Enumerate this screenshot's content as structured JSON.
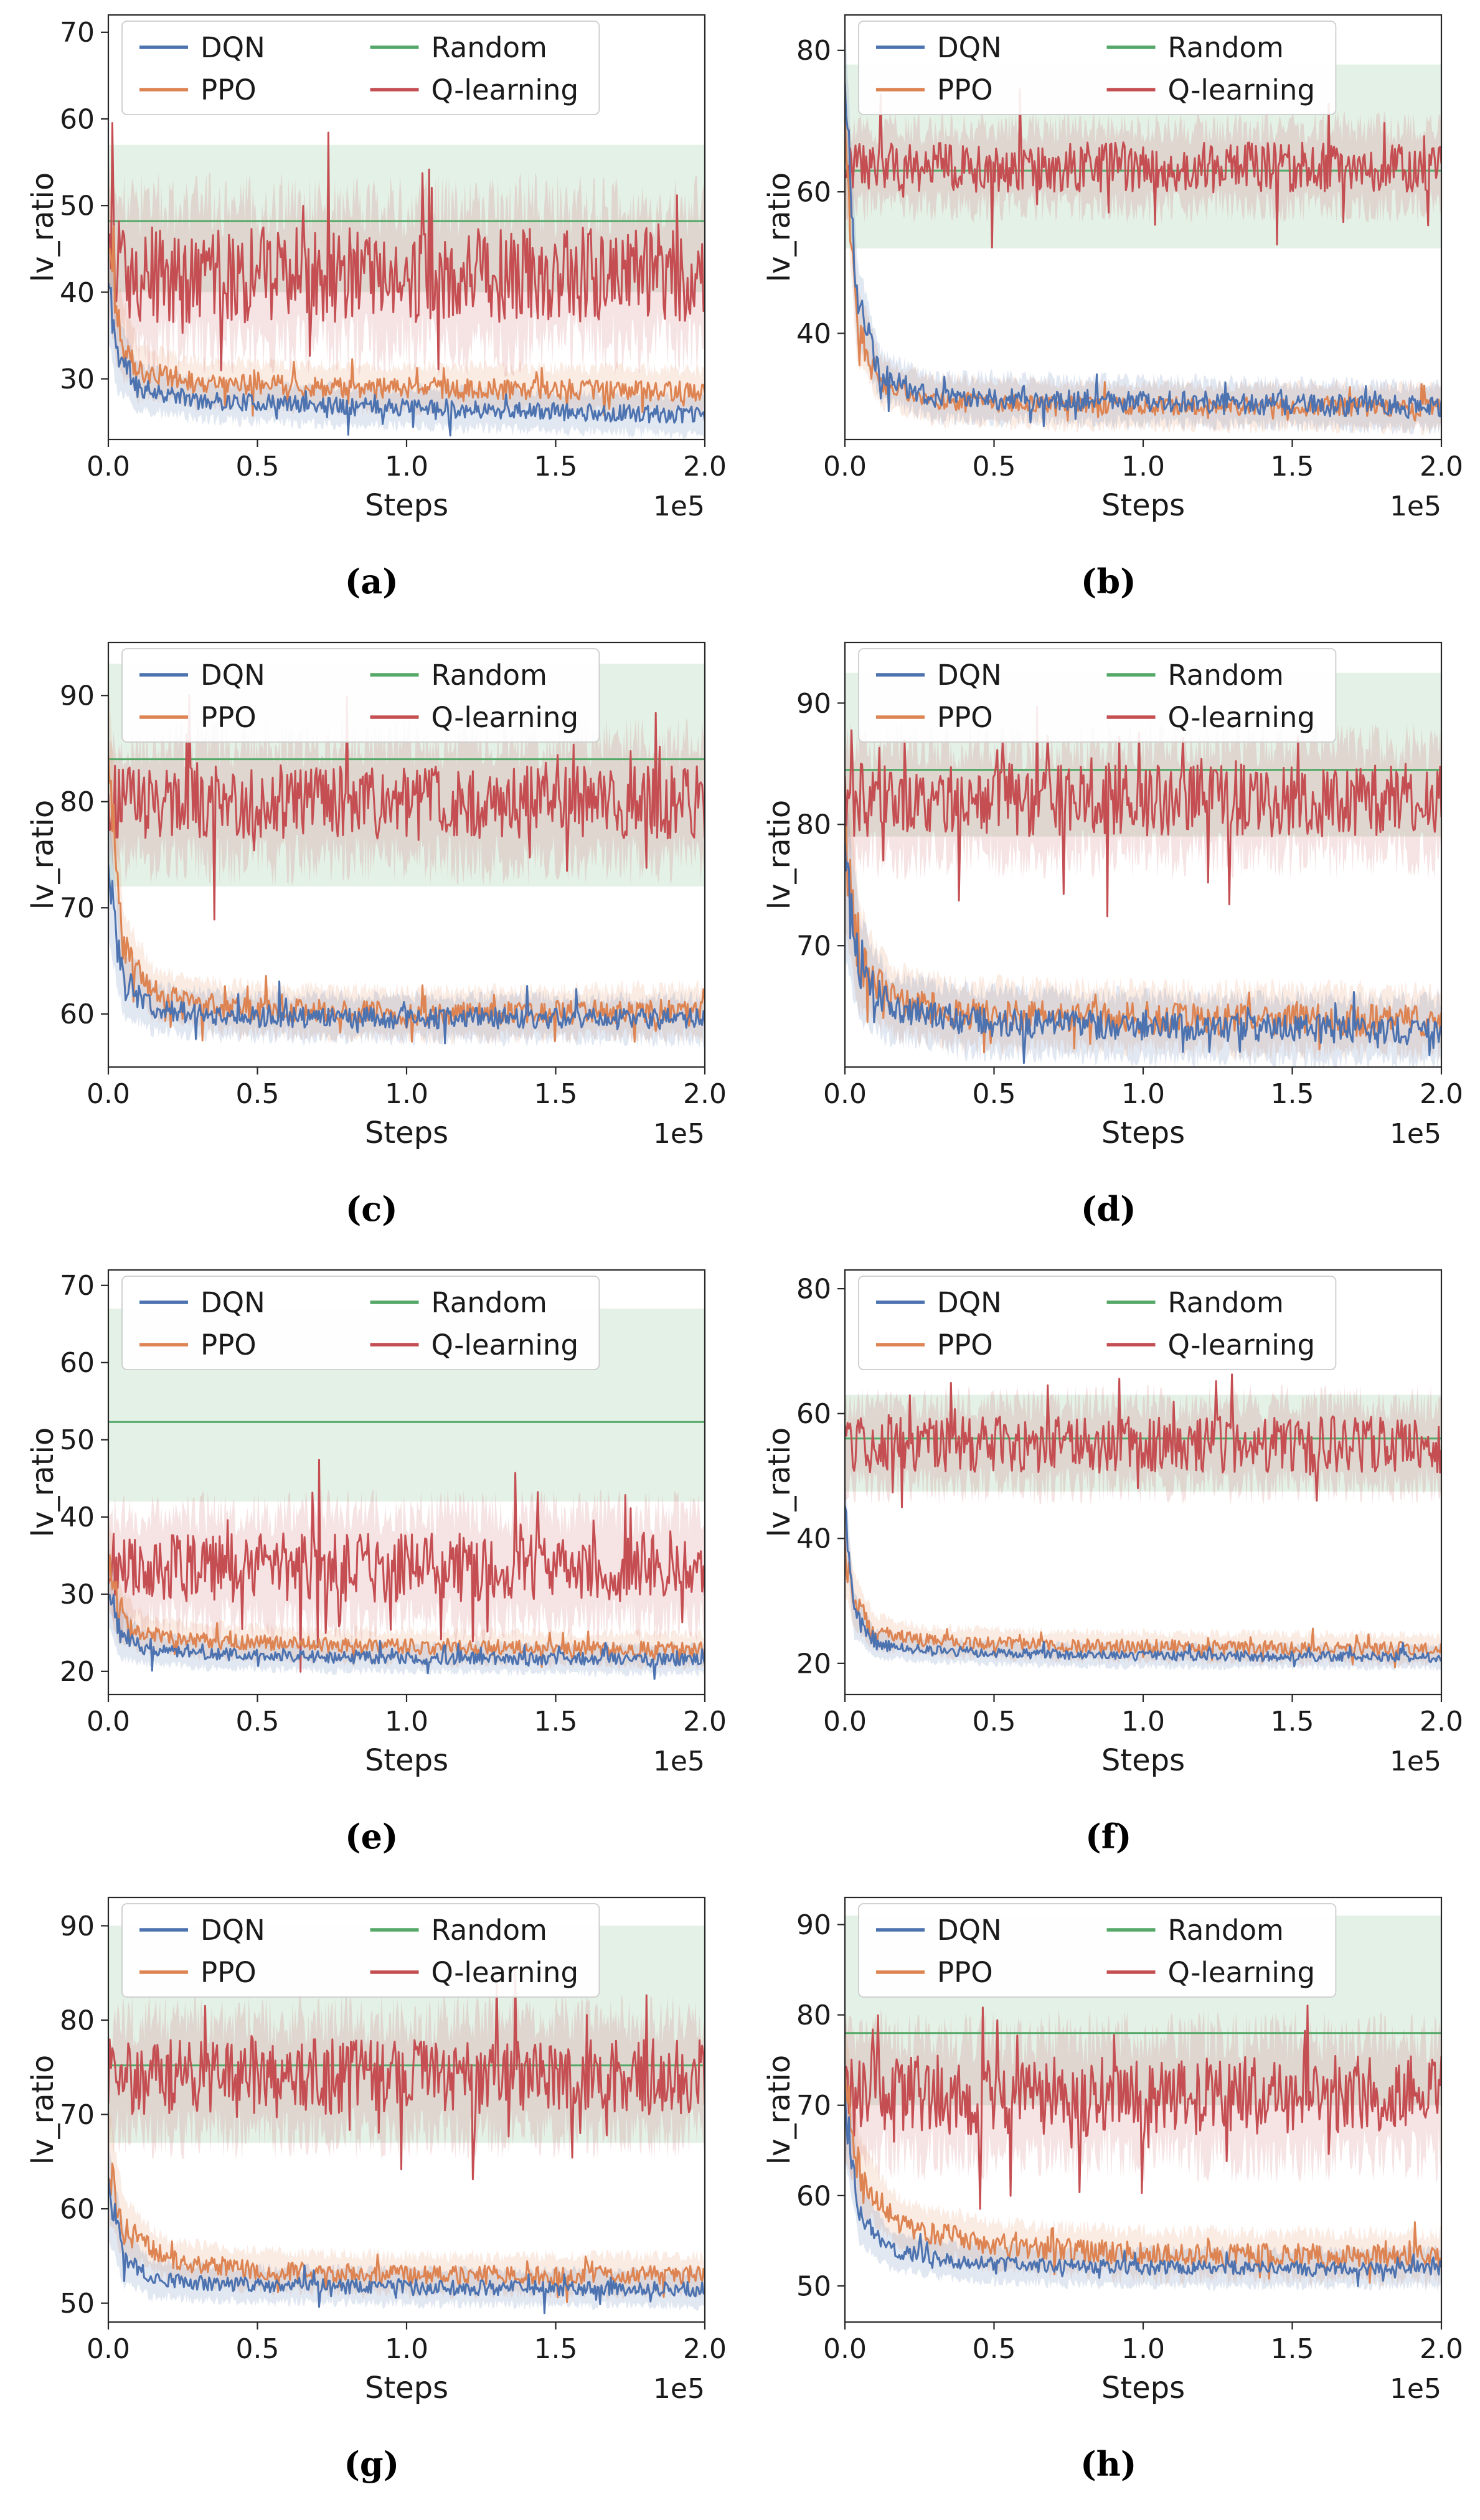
{
  "page": {
    "background": "#ffffff"
  },
  "palette": {
    "DQN": "#4C72B0",
    "PPO": "#DD8452",
    "Random": "#55A868",
    "Q-learning": "#C44E52"
  },
  "chart_data": [
    {
      "type": "line",
      "caption": "(a)",
      "xlabel": "Steps",
      "ylabel": "lv_ratio",
      "x_offset_label": "1e5",
      "xlim": [
        0,
        2
      ],
      "x_ticks": [
        0,
        0.5,
        1,
        1.5,
        2
      ],
      "ylim": [
        23,
        72
      ],
      "y_ticks": [
        30,
        40,
        50,
        60,
        70
      ],
      "legend": [
        "DQN",
        "PPO",
        "Random",
        "Q-learning"
      ],
      "legend_position": "upper center",
      "grid": false,
      "draw_order": [
        2,
        3,
        1,
        0
      ],
      "series": [
        {
          "name": "DQN",
          "color": "#4C72B0",
          "trend_x": [
            0,
            0.03,
            0.1,
            0.3,
            0.7,
            1.4,
            2
          ],
          "trend_y": [
            41,
            33,
            29,
            27.5,
            27,
            26.3,
            25.8
          ],
          "noise": 1.0,
          "band": 2.2,
          "early_noise": 2,
          "seed": 11
        },
        {
          "name": "PPO",
          "color": "#DD8452",
          "trend_x": [
            0,
            0.03,
            0.1,
            0.3,
            0.8,
            1.5,
            2
          ],
          "trend_y": [
            46,
            36,
            31,
            29.5,
            29,
            28.8,
            28.5
          ],
          "noise": 1.2,
          "band": 2.5,
          "early_noise": 2,
          "seed": 12
        },
        {
          "name": "Random",
          "color": "#55A868",
          "trend_x": [
            0,
            2
          ],
          "trend_y": [
            48.2,
            48.2
          ],
          "noise": 0,
          "band_low": 40,
          "band_high": 57,
          "seed": 13
        },
        {
          "name": "Q-learning",
          "color": "#C44E52",
          "trend_x": [
            0,
            0.05,
            2
          ],
          "trend_y": [
            47,
            42,
            42
          ],
          "noise": 5.5,
          "band": 8,
          "seed": 14
        }
      ]
    },
    {
      "type": "line",
      "caption": "(b)",
      "xlabel": "Steps",
      "ylabel": "lv_ratio",
      "x_offset_label": "1e5",
      "xlim": [
        0,
        2
      ],
      "x_ticks": [
        0,
        0.5,
        1,
        1.5,
        2
      ],
      "ylim": [
        25,
        85
      ],
      "y_ticks": [
        40,
        60,
        80
      ],
      "legend": [
        "DQN",
        "PPO",
        "Random",
        "Q-learning"
      ],
      "legend_position": "upper center",
      "grid": false,
      "draw_order": [
        2,
        3,
        1,
        0
      ],
      "series": [
        {
          "name": "DQN",
          "color": "#4C72B0",
          "trend_x": [
            0,
            0.04,
            0.12,
            0.3,
            0.8,
            1.5,
            2
          ],
          "trend_y": [
            76,
            45,
            34,
            31,
            30.5,
            30,
            29.5
          ],
          "noise": 1.6,
          "band": 3,
          "early_noise": 2,
          "seed": 21
        },
        {
          "name": "PPO",
          "color": "#DD8452",
          "trend_x": [
            0,
            0.04,
            0.12,
            0.3,
            0.8,
            2
          ],
          "trend_y": [
            70,
            42,
            33,
            30.5,
            29.8,
            29.5
          ],
          "noise": 1.3,
          "band": 3,
          "early_noise": 2,
          "seed": 22
        },
        {
          "name": "Random",
          "color": "#55A868",
          "trend_x": [
            0,
            2
          ],
          "trend_y": [
            63,
            63
          ],
          "noise": 0,
          "band_low": 52,
          "band_high": 78,
          "seed": 23
        },
        {
          "name": "Q-learning",
          "color": "#C44E52",
          "trend_x": [
            0,
            2
          ],
          "trend_y": [
            63.5,
            63.5
          ],
          "noise": 3.5,
          "band": 5.5,
          "seed": 24
        }
      ]
    },
    {
      "type": "line",
      "caption": "(c)",
      "xlabel": "Steps",
      "ylabel": "lv_ratio",
      "x_offset_label": "1e5",
      "xlim": [
        0,
        2
      ],
      "x_ticks": [
        0,
        0.5,
        1,
        1.5,
        2
      ],
      "ylim": [
        55,
        95
      ],
      "y_ticks": [
        60,
        70,
        80,
        90
      ],
      "legend": [
        "DQN",
        "PPO",
        "Random",
        "Q-learning"
      ],
      "legend_position": "upper center",
      "grid": false,
      "draw_order": [
        2,
        3,
        1,
        0
      ],
      "series": [
        {
          "name": "DQN",
          "color": "#4C72B0",
          "trend_x": [
            0,
            0.05,
            0.15,
            0.4,
            1,
            2
          ],
          "trend_y": [
            73,
            63,
            60.5,
            59.8,
            59.6,
            59.5
          ],
          "noise": 1.0,
          "band": 2.0,
          "early_noise": 2,
          "seed": 31
        },
        {
          "name": "PPO",
          "color": "#DD8452",
          "trend_x": [
            0,
            0.05,
            0.15,
            0.4,
            1,
            2
          ],
          "trend_y": [
            85,
            66,
            62,
            60.5,
            60,
            60.3
          ],
          "noise": 1.1,
          "band": 2.2,
          "early_noise": 2,
          "seed": 32
        },
        {
          "name": "Random",
          "color": "#55A868",
          "trend_x": [
            0,
            2
          ],
          "trend_y": [
            84,
            84
          ],
          "noise": 0,
          "band_low": 72,
          "band_high": 93,
          "seed": 33
        },
        {
          "name": "Q-learning",
          "color": "#C44E52",
          "trend_x": [
            0,
            2
          ],
          "trend_y": [
            80,
            80
          ],
          "noise": 3.5,
          "band": 5.5,
          "seed": 34
        }
      ]
    },
    {
      "type": "line",
      "caption": "(d)",
      "xlabel": "Steps",
      "ylabel": "lv_ratio",
      "x_offset_label": "1e5",
      "xlim": [
        0,
        2
      ],
      "x_ticks": [
        0,
        0.5,
        1,
        1.5,
        2
      ],
      "ylim": [
        60,
        95
      ],
      "y_ticks": [
        70,
        80,
        90
      ],
      "legend": [
        "DQN",
        "PPO",
        "Random",
        "Q-learning"
      ],
      "legend_position": "upper center",
      "grid": false,
      "draw_order": [
        2,
        3,
        1,
        0
      ],
      "series": [
        {
          "name": "DQN",
          "color": "#4C72B0",
          "trend_x": [
            0,
            0.05,
            0.15,
            0.4,
            1,
            2
          ],
          "trend_y": [
            76,
            68,
            65,
            63.8,
            63.3,
            63
          ],
          "noise": 1.2,
          "band": 2.5,
          "early_noise": 2,
          "seed": 41
        },
        {
          "name": "PPO",
          "color": "#DD8452",
          "trend_x": [
            0,
            0.05,
            0.15,
            0.4,
            1,
            2
          ],
          "trend_y": [
            78,
            69,
            65.5,
            64.3,
            64,
            63.8
          ],
          "noise": 1.3,
          "band": 2.5,
          "early_noise": 2,
          "seed": 42
        },
        {
          "name": "Random",
          "color": "#55A868",
          "trend_x": [
            0,
            2
          ],
          "trend_y": [
            84.5,
            84.5
          ],
          "noise": 0,
          "band_low": 79,
          "band_high": 92.5,
          "seed": 43
        },
        {
          "name": "Q-learning",
          "color": "#C44E52",
          "trend_x": [
            0,
            2
          ],
          "trend_y": [
            82,
            82
          ],
          "noise": 3,
          "band": 4.5,
          "seed": 44
        }
      ]
    },
    {
      "type": "line",
      "caption": "(e)",
      "xlabel": "Steps",
      "ylabel": "lv_ratio",
      "x_offset_label": "1e5",
      "xlim": [
        0,
        2
      ],
      "x_ticks": [
        0,
        0.5,
        1,
        1.5,
        2
      ],
      "ylim": [
        17,
        72
      ],
      "y_ticks": [
        20,
        30,
        40,
        50,
        60,
        70
      ],
      "legend": [
        "DQN",
        "PPO",
        "Random",
        "Q-learning"
      ],
      "legend_position": "upper center",
      "grid": false,
      "draw_order": [
        2,
        3,
        1,
        0
      ],
      "series": [
        {
          "name": "DQN",
          "color": "#4C72B0",
          "trend_x": [
            0,
            0.04,
            0.12,
            0.3,
            0.8,
            2
          ],
          "trend_y": [
            31,
            25,
            23,
            22.3,
            21.8,
            21.5
          ],
          "noise": 0.8,
          "band": 1.8,
          "early_noise": 2,
          "seed": 51
        },
        {
          "name": "PPO",
          "color": "#DD8452",
          "trend_x": [
            0,
            0.04,
            0.12,
            0.3,
            0.8,
            2
          ],
          "trend_y": [
            34,
            27,
            25,
            24,
            23.3,
            22.8
          ],
          "noise": 1.0,
          "band": 2.0,
          "early_noise": 2,
          "seed": 52
        },
        {
          "name": "Random",
          "color": "#55A868",
          "trend_x": [
            0,
            2
          ],
          "trend_y": [
            52.3,
            52.3
          ],
          "noise": 0,
          "band_low": 42,
          "band_high": 67,
          "seed": 53
        },
        {
          "name": "Q-learning",
          "color": "#C44E52",
          "trend_x": [
            0,
            2
          ],
          "trend_y": [
            33.5,
            33.5
          ],
          "noise": 4.5,
          "band": 7,
          "seed": 54
        }
      ]
    },
    {
      "type": "line",
      "caption": "(f)",
      "xlabel": "Steps",
      "ylabel": "lv_ratio",
      "x_offset_label": "1e5",
      "xlim": [
        0,
        2
      ],
      "x_ticks": [
        0,
        0.5,
        1,
        1.5,
        2
      ],
      "ylim": [
        15,
        83
      ],
      "y_ticks": [
        20,
        40,
        60,
        80
      ],
      "legend": [
        "DQN",
        "PPO",
        "Random",
        "Q-learning"
      ],
      "legend_position": "upper center",
      "grid": false,
      "draw_order": [
        2,
        3,
        1,
        0
      ],
      "series": [
        {
          "name": "DQN",
          "color": "#4C72B0",
          "trend_x": [
            0,
            0.03,
            0.1,
            0.3,
            0.8,
            2
          ],
          "trend_y": [
            45,
            28,
            23,
            22,
            21.3,
            21
          ],
          "noise": 0.8,
          "band": 1.8,
          "early_noise": 2,
          "seed": 61
        },
        {
          "name": "PPO",
          "color": "#DD8452",
          "trend_x": [
            0,
            0.03,
            0.1,
            0.3,
            0.8,
            2
          ],
          "trend_y": [
            38,
            30,
            25,
            23.5,
            22.8,
            22.3
          ],
          "noise": 1.1,
          "band": 2.2,
          "early_noise": 2,
          "seed": 62
        },
        {
          "name": "Random",
          "color": "#55A868",
          "trend_x": [
            0,
            2
          ],
          "trend_y": [
            56,
            56
          ],
          "noise": 0,
          "band_low": 47.5,
          "band_high": 63,
          "seed": 63
        },
        {
          "name": "Q-learning",
          "color": "#C44E52",
          "trend_x": [
            0,
            2
          ],
          "trend_y": [
            55,
            55
          ],
          "noise": 4.5,
          "band": 6.5,
          "seed": 64
        }
      ]
    },
    {
      "type": "line",
      "caption": "(g)",
      "xlabel": "Steps",
      "ylabel": "lv_ratio",
      "x_offset_label": "1e5",
      "xlim": [
        0,
        2
      ],
      "x_ticks": [
        0,
        0.5,
        1,
        1.5,
        2
      ],
      "ylim": [
        48,
        93
      ],
      "y_ticks": [
        50,
        60,
        70,
        80,
        90
      ],
      "legend": [
        "DQN",
        "PPO",
        "Random",
        "Q-learning"
      ],
      "legend_position": "upper center",
      "grid": false,
      "draw_order": [
        2,
        3,
        1,
        0
      ],
      "series": [
        {
          "name": "DQN",
          "color": "#4C72B0",
          "trend_x": [
            0,
            0.05,
            0.15,
            0.4,
            1,
            2
          ],
          "trend_y": [
            62,
            55,
            52.5,
            52,
            51.7,
            51.5
          ],
          "noise": 0.8,
          "band": 1.8,
          "early_noise": 2,
          "seed": 71
        },
        {
          "name": "PPO",
          "color": "#DD8452",
          "trend_x": [
            0,
            0.05,
            0.2,
            0.5,
            1,
            2
          ],
          "trend_y": [
            65,
            58,
            54.5,
            53.5,
            53,
            53
          ],
          "noise": 1.0,
          "band": 2.0,
          "early_noise": 2,
          "seed": 72
        },
        {
          "name": "Random",
          "color": "#55A868",
          "trend_x": [
            0,
            2
          ],
          "trend_y": [
            75.2,
            75.2
          ],
          "noise": 0,
          "band_low": 67,
          "band_high": 90,
          "seed": 73
        },
        {
          "name": "Q-learning",
          "color": "#C44E52",
          "trend_x": [
            0,
            2
          ],
          "trend_y": [
            74,
            74
          ],
          "noise": 4,
          "band": 6,
          "seed": 74
        }
      ]
    },
    {
      "type": "line",
      "caption": "(h)",
      "xlabel": "Steps",
      "ylabel": "lv_ratio",
      "x_offset_label": "1e5",
      "xlim": [
        0,
        2
      ],
      "x_ticks": [
        0,
        0.5,
        1,
        1.5,
        2
      ],
      "ylim": [
        46,
        93
      ],
      "y_ticks": [
        50,
        60,
        70,
        80,
        90
      ],
      "legend": [
        "DQN",
        "PPO",
        "Random",
        "Q-learning"
      ],
      "legend_position": "upper center",
      "grid": false,
      "draw_order": [
        2,
        3,
        1,
        0
      ],
      "series": [
        {
          "name": "DQN",
          "color": "#4C72B0",
          "trend_x": [
            0,
            0.05,
            0.15,
            0.4,
            1,
            2
          ],
          "trend_y": [
            70,
            58,
            54,
            52.5,
            52,
            52
          ],
          "noise": 0.8,
          "band": 2.0,
          "early_noise": 2,
          "seed": 81
        },
        {
          "name": "PPO",
          "color": "#DD8452",
          "trend_x": [
            0,
            0.05,
            0.2,
            0.5,
            1,
            2
          ],
          "trend_y": [
            72,
            62,
            56.5,
            54.5,
            53.5,
            53.2
          ],
          "noise": 1.3,
          "band": 2.5,
          "early_noise": 2,
          "seed": 82
        },
        {
          "name": "Random",
          "color": "#55A868",
          "trend_x": [
            0,
            2
          ],
          "trend_y": [
            78,
            78
          ],
          "noise": 0,
          "band_low": 70,
          "band_high": 91,
          "seed": 83
        },
        {
          "name": "Q-learning",
          "color": "#C44E52",
          "trend_x": [
            0,
            2
          ],
          "trend_y": [
            71,
            71
          ],
          "noise": 4.5,
          "band": 6.5,
          "seed": 84
        }
      ]
    }
  ]
}
